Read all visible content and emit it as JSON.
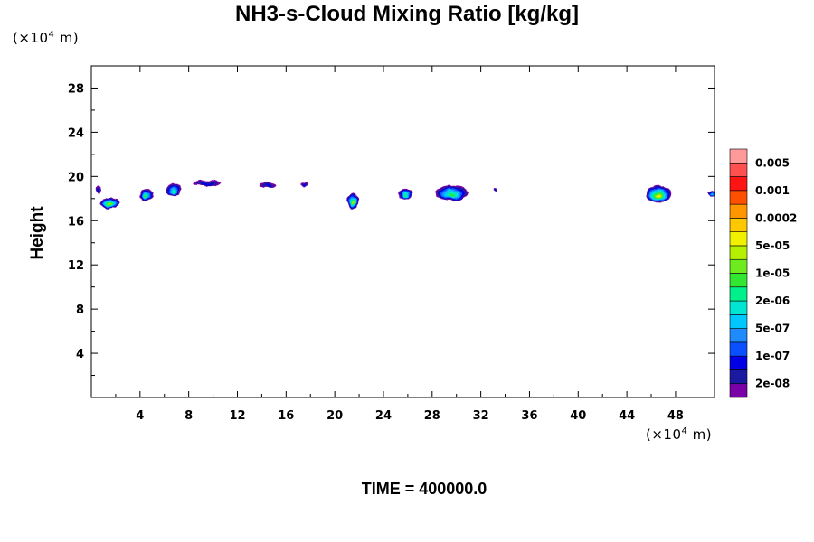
{
  "chart_data": {
    "type": "heatmap",
    "title": "NH3-s-Cloud Mixing Ratio [kg/kg]",
    "xlabel": "",
    "ylabel": "Height",
    "x_unit": {
      "prefix": "(×10",
      "exp": "4",
      "suffix": " m)"
    },
    "y_unit": {
      "prefix": "(×10",
      "exp": "4",
      "suffix": " m)"
    },
    "xlim": [
      0,
      51.2
    ],
    "ylim": [
      0,
      30
    ],
    "xticks": [
      4,
      8,
      12,
      16,
      20,
      24,
      28,
      32,
      36,
      40,
      44,
      48
    ],
    "yticks": [
      4,
      8,
      12,
      16,
      20,
      24,
      28
    ],
    "xtick_labels": [
      "4",
      "8",
      "12",
      "16",
      "20",
      "24",
      "28",
      "32",
      "36",
      "40",
      "44",
      "48"
    ],
    "ytick_labels": [
      "4",
      "8",
      "12",
      "16",
      "20",
      "24",
      "28"
    ],
    "grid": false,
    "colorbar": {
      "colors": [
        "#7a00a8",
        "#1a1aa0",
        "#0000e6",
        "#0a50ff",
        "#1e8cff",
        "#00c8ff",
        "#00e6d2",
        "#00f08c",
        "#32e632",
        "#6eeb1e",
        "#b4f000",
        "#f0f000",
        "#ffc800",
        "#ff9600",
        "#ff5000",
        "#ff1414",
        "#ff5050",
        "#ff9a9a"
      ],
      "labels": [
        "2e-08",
        "1e-07",
        "5e-07",
        "2e-06",
        "1e-05",
        "5e-05",
        "0.0002",
        "0.001",
        "0.005"
      ]
    },
    "cloud_blobs": [
      {
        "x": 0.6,
        "y": 18.8,
        "w": 0.5,
        "h": 0.8,
        "level": 2
      },
      {
        "x": 1.5,
        "y": 17.6,
        "w": 1.6,
        "h": 1.1,
        "level": 10
      },
      {
        "x": 4.5,
        "y": 18.3,
        "w": 1.1,
        "h": 1.2,
        "level": 8
      },
      {
        "x": 6.8,
        "y": 18.8,
        "w": 1.2,
        "h": 1.2,
        "level": 7
      },
      {
        "x": 9.5,
        "y": 19.4,
        "w": 2.4,
        "h": 0.5,
        "level": 2
      },
      {
        "x": 14.5,
        "y": 19.2,
        "w": 1.4,
        "h": 0.5,
        "level": 2
      },
      {
        "x": 17.5,
        "y": 19.3,
        "w": 0.7,
        "h": 0.4,
        "level": 2
      },
      {
        "x": 21.5,
        "y": 17.8,
        "w": 0.9,
        "h": 1.4,
        "level": 10
      },
      {
        "x": 25.8,
        "y": 18.4,
        "w": 1.1,
        "h": 0.9,
        "level": 7
      },
      {
        "x": 29.6,
        "y": 18.5,
        "w": 2.7,
        "h": 1.4,
        "level": 8
      },
      {
        "x": 33.2,
        "y": 18.8,
        "w": 0.3,
        "h": 0.3,
        "level": 2
      },
      {
        "x": 46.6,
        "y": 18.4,
        "w": 2.1,
        "h": 1.5,
        "level": 11
      },
      {
        "x": 51.0,
        "y": 18.5,
        "w": 0.6,
        "h": 0.5,
        "level": 5
      }
    ]
  },
  "footer": {
    "time_label": "TIME = 400000.0"
  }
}
